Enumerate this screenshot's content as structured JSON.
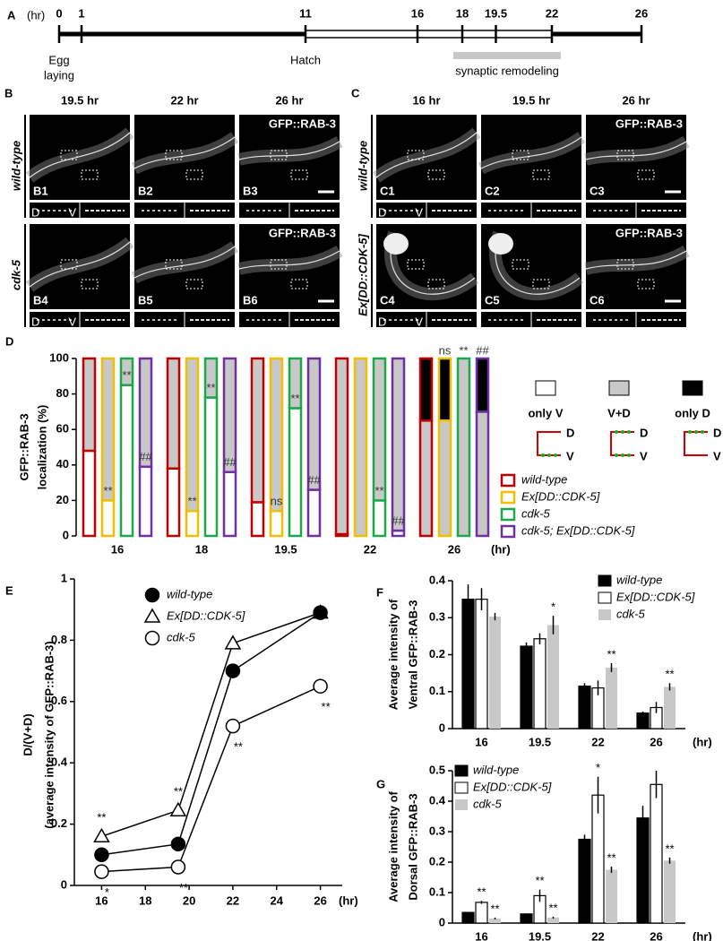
{
  "timeline": {
    "label": "A",
    "unit": "(hr)",
    "xlim": [
      0,
      26
    ],
    "ticks": [
      0,
      1,
      11,
      16,
      18,
      19.5,
      22,
      26
    ],
    "white_span": [
      11,
      22
    ],
    "events": [
      {
        "at": 0,
        "text": [
          "Egg",
          "laying"
        ]
      },
      {
        "at": 11,
        "text": [
          "Hatch"
        ]
      }
    ],
    "remodeling": {
      "text": "synaptic remodeling",
      "span": [
        17.6,
        22.4
      ]
    }
  },
  "dv": [
    "D",
    "V"
  ],
  "images": [
    {
      "label": "B",
      "columns": [
        "19.5 hr",
        "22 hr",
        "26 hr"
      ],
      "rows": [
        "wild-type",
        "cdk-5"
      ],
      "marker": "GFP::RAB-3",
      "names": [
        "B1",
        "B2",
        "B3",
        "B4",
        "B5",
        "B6"
      ]
    },
    {
      "label": "C",
      "columns": [
        "16 hr",
        "19.5 hr",
        "26 hr"
      ],
      "rows": [
        "wild-type",
        "Ex[DD::CDK-5]"
      ],
      "marker": "GFP::RAB-3",
      "names": [
        "C1",
        "C2",
        "C3",
        "C4",
        "C5",
        "C6"
      ]
    }
  ],
  "chart_data": [
    {
      "type": "stacked_group_bar",
      "label": "D",
      "ylabel": [
        "GFP::RAB-3",
        "localization (%)"
      ],
      "xlabel": "(hr)",
      "categories": [
        "16",
        "18",
        "19.5",
        "22",
        "26"
      ],
      "ylim": [
        0,
        100
      ],
      "yticks": [
        0,
        20,
        40,
        60,
        80,
        100
      ],
      "stacks": [
        {
          "name": "only V",
          "color": "#ffffff"
        },
        {
          "name": "V+D",
          "color": "#c8c8c8"
        },
        {
          "name": "only D",
          "color": "#000000"
        }
      ],
      "series": [
        {
          "name": "wild-type",
          "color": "#c00000",
          "values": [
            [
              48,
              52,
              0
            ],
            [
              38,
              62,
              0
            ],
            [
              19,
              81,
              0
            ],
            [
              1,
              99,
              0
            ],
            [
              0,
              65,
              35
            ]
          ]
        },
        {
          "name": "Ex[DD::CDK-5]",
          "color": "#f0c000",
          "values": [
            [
              20,
              80,
              0
            ],
            [
              14,
              86,
              0
            ],
            [
              14,
              86,
              0
            ],
            [
              0,
              100,
              0
            ],
            [
              0,
              65,
              35
            ]
          ],
          "annotations": [
            "**",
            "**",
            "ns",
            null,
            "ns"
          ]
        },
        {
          "name": "cdk-5",
          "color": "#1aa84a",
          "values": [
            [
              85,
              15,
              0
            ],
            [
              78,
              22,
              0
            ],
            [
              72,
              28,
              0
            ],
            [
              20,
              80,
              0
            ],
            [
              0,
              100,
              0
            ]
          ],
          "annotations": [
            "**",
            "**",
            "**",
            "**",
            "**"
          ]
        },
        {
          "name": "cdk-5; Ex[DD::CDK-5]",
          "color": "#7030a0",
          "values": [
            [
              39,
              61,
              0
            ],
            [
              36,
              64,
              0
            ],
            [
              26,
              74,
              0
            ],
            [
              3,
              97,
              0
            ],
            [
              0,
              70,
              30
            ]
          ],
          "annotations": [
            "##",
            "##",
            "##",
            "##",
            "##"
          ]
        }
      ]
    },
    {
      "type": "line",
      "label": "E",
      "ylabel": [
        "D/(V+D)",
        "(average intensity of GFP::RAB-3)"
      ],
      "xlabel": "(hr)",
      "xlim": [
        15,
        27
      ],
      "xticks": [
        16,
        18,
        20,
        22,
        24,
        26
      ],
      "ylim": [
        0,
        1
      ],
      "yticks": [
        0,
        0.2,
        0.4,
        0.6,
        0.8,
        1
      ],
      "series": [
        {
          "name": "wild-type",
          "color": "#000000",
          "marker": "filled-circle",
          "x": [
            16,
            19.5,
            22,
            26
          ],
          "values": [
            0.1,
            0.135,
            0.7,
            0.89
          ]
        },
        {
          "name": "Ex[DD::CDK-5]",
          "color": "#000000",
          "marker": "open-triangle",
          "x": [
            16,
            19.5,
            22,
            26
          ],
          "values": [
            0.16,
            0.245,
            0.79,
            0.89
          ],
          "annotations": [
            "**",
            "**",
            null,
            null
          ]
        },
        {
          "name": "cdk-5",
          "color": "#000000",
          "marker": "open-circle",
          "x": [
            16,
            19.5,
            22,
            26
          ],
          "values": [
            0.045,
            0.06,
            0.52,
            0.65
          ],
          "annotations": [
            "*",
            "**",
            "**",
            "**"
          ]
        }
      ]
    },
    {
      "type": "bar",
      "label": "F",
      "ylabel": [
        "Average intensity of",
        "Ventral GFP::RAB-3"
      ],
      "xlabel": "(hr)",
      "categories": [
        "16",
        "19.5",
        "22",
        "26"
      ],
      "ylim": [
        0,
        0.4
      ],
      "yticks": [
        0,
        0.1,
        0.2,
        0.3,
        0.4
      ],
      "series": [
        {
          "name": "wild-type",
          "color": "#000000",
          "values": [
            0.35,
            0.223,
            0.115,
            0.042
          ],
          "errors": [
            0.04,
            0.01,
            0.008,
            0.004
          ]
        },
        {
          "name": "Ex[DD::CDK-5]",
          "color": "#ffffff",
          "values": [
            0.35,
            0.243,
            0.11,
            0.057
          ],
          "errors": [
            0.03,
            0.015,
            0.02,
            0.015
          ]
        },
        {
          "name": "cdk-5",
          "color": "#c8c8c8",
          "values": [
            0.303,
            0.28,
            0.165,
            0.113
          ],
          "errors": [
            0.01,
            0.025,
            0.012,
            0.01
          ],
          "annotations": [
            null,
            "*",
            "**",
            "**"
          ]
        }
      ]
    },
    {
      "type": "bar",
      "label": "G",
      "ylabel": [
        "Average intensity of",
        "Dorsal GFP::RAB-3"
      ],
      "xlabel": "(hr)",
      "categories": [
        "16",
        "19.5",
        "22",
        "26"
      ],
      "ylim": [
        0,
        0.5
      ],
      "yticks": [
        0,
        0.1,
        0.2,
        0.3,
        0.4,
        0.5
      ],
      "series": [
        {
          "name": "wild-type",
          "color": "#000000",
          "values": [
            0.035,
            0.03,
            0.275,
            0.345
          ],
          "errors": [
            0.002,
            0.002,
            0.015,
            0.04
          ]
        },
        {
          "name": "Ex[DD::CDK-5]",
          "color": "#ffffff",
          "values": [
            0.068,
            0.09,
            0.42,
            0.455
          ],
          "errors": [
            0.005,
            0.02,
            0.06,
            0.045
          ],
          "annotations": [
            "**",
            "**",
            "*",
            null
          ]
        },
        {
          "name": "cdk-5",
          "color": "#c8c8c8",
          "values": [
            0.015,
            0.018,
            0.175,
            0.205
          ],
          "errors": [
            0.003,
            0.003,
            0.01,
            0.01
          ],
          "annotations": [
            "**",
            "**",
            "**",
            "**"
          ]
        }
      ]
    }
  ]
}
